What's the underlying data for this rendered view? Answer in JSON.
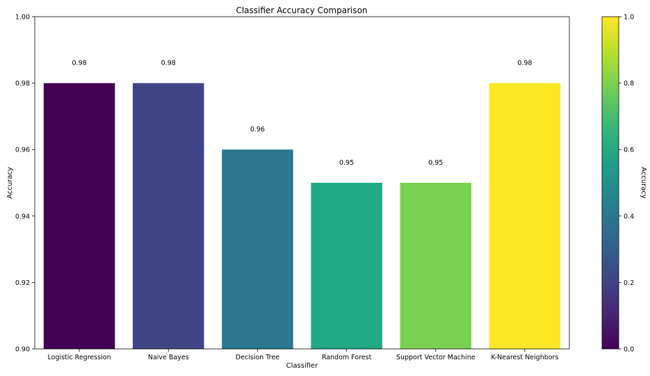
{
  "chart_data": {
    "type": "bar",
    "title": "Classifier Accuracy Comparison",
    "xlabel": "Classifier",
    "ylabel": "Accuracy",
    "ylim": [
      0.9,
      1.0
    ],
    "yticks": [
      "0.90",
      "0.92",
      "0.94",
      "0.96",
      "0.98",
      "1.00"
    ],
    "categories": [
      "Logistic Regression",
      "Naive Bayes",
      "Decision Tree",
      "Random Forest",
      "Support Vector Machine",
      "K-Nearest Neighbors"
    ],
    "values": [
      0.98,
      0.98,
      0.96,
      0.95,
      0.95,
      0.98
    ],
    "data_labels": [
      "0.98",
      "0.98",
      "0.96",
      "0.95",
      "0.95",
      "0.98"
    ],
    "bar_colors": [
      "#440154",
      "#414487",
      "#2a788e",
      "#22a884",
      "#7ad151",
      "#fde725"
    ],
    "grid": false,
    "colorbar": {
      "label": "Accuracy",
      "range": [
        0.0,
        1.0
      ],
      "ticks": [
        "0.0",
        "0.2",
        "0.4",
        "0.6",
        "0.8",
        "1.0"
      ],
      "colormap": "viridis",
      "colormap_stops": [
        "#440154",
        "#482878",
        "#3e4989",
        "#31688e",
        "#26828e",
        "#1f9e89",
        "#35b779",
        "#6ece58",
        "#b5de2b",
        "#fde725"
      ]
    }
  }
}
